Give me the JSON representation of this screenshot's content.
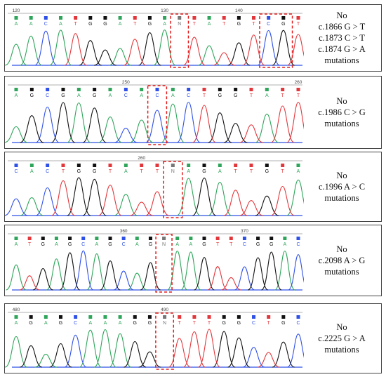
{
  "colors": {
    "A": "#2ea55a",
    "C": "#2f50e6",
    "G": "#111111",
    "T": "#e2363b",
    "highlight": "#e31b1b"
  },
  "panels": [
    {
      "ticks": [
        {
          "label": "120",
          "index": 0
        },
        {
          "label": "130",
          "index": 10
        },
        {
          "label": "140",
          "index": 15
        }
      ],
      "bases": [
        "A",
        "A",
        "C",
        "A",
        "T",
        "G",
        "G",
        "A",
        "T",
        "G",
        "A",
        "N",
        "T",
        "A",
        "T",
        "G",
        "T",
        "C",
        "G",
        "T"
      ],
      "highlight_groups": [
        [
          11
        ],
        [
          17,
          18
        ]
      ],
      "caption": [
        "No",
        "c.1866 G > T",
        "c.1873 C > T",
        "c.1874 G > A",
        "mutations"
      ]
    },
    {
      "ticks": [
        {
          "label": "250",
          "index": 7
        },
        {
          "label": "260",
          "index": 18
        }
      ],
      "bases": [
        "A",
        "G",
        "C",
        "G",
        "A",
        "G",
        "A",
        "C",
        "A",
        "C",
        "A",
        "C",
        "T",
        "G",
        "G",
        "T",
        "A",
        "T",
        "T"
      ],
      "highlight_groups": [
        [
          9
        ]
      ],
      "caption": [
        "No",
        "c.1986 C > G",
        "mutations"
      ]
    },
    {
      "ticks": [
        {
          "label": "260",
          "index": 8
        }
      ],
      "bases": [
        "C",
        "A",
        "C",
        "T",
        "G",
        "G",
        "T",
        "A",
        "T",
        "T",
        "N",
        "A",
        "G",
        "A",
        "T",
        "T",
        "G",
        "T",
        "A"
      ],
      "highlight_groups": [
        [
          10
        ]
      ],
      "caption": [
        "No",
        "c.1996 A > C",
        "mutations"
      ]
    },
    {
      "ticks": [
        {
          "label": "360",
          "index": 8
        },
        {
          "label": "370",
          "index": 17
        }
      ],
      "bases": [
        "A",
        "T",
        "G",
        "A",
        "G",
        "C",
        "A",
        "G",
        "C",
        "A",
        "G",
        "N",
        "A",
        "A",
        "G",
        "T",
        "T",
        "C",
        "G",
        "G",
        "A",
        "C"
      ],
      "highlight_groups": [
        [
          11
        ]
      ],
      "caption": [
        "No",
        "c.2098 A > G",
        "mutations"
      ]
    },
    {
      "ticks": [
        {
          "label": "480",
          "index": 0
        },
        {
          "label": "490",
          "index": 10
        }
      ],
      "bases": [
        "A",
        "G",
        "A",
        "G",
        "C",
        "A",
        "A",
        "A",
        "G",
        "G",
        "N",
        "T",
        "T",
        "T",
        "G",
        "G",
        "C",
        "T",
        "G",
        "C"
      ],
      "highlight_groups": [
        [
          10
        ]
      ],
      "caption": [
        "No",
        "c.2225 G > A",
        "mutations"
      ]
    }
  ]
}
